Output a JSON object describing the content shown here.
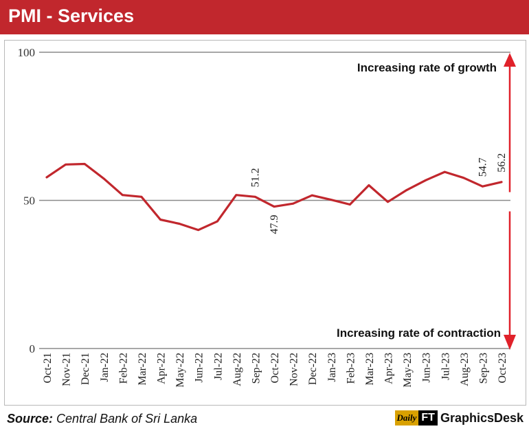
{
  "header": {
    "title": "PMI - Services"
  },
  "chart_data": {
    "type": "line",
    "title": "PMI - Services",
    "categories": [
      "Oct-21",
      "Nov-21",
      "Dec-21",
      "Jan-22",
      "Feb-22",
      "Mar-22",
      "Apr-22",
      "May-22",
      "Jun-22",
      "Jul-22",
      "Aug-22",
      "Sep-22",
      "Oct-22",
      "Nov-22",
      "Dec-22",
      "Jan-23",
      "Feb-23",
      "Mar-23",
      "Apr-23",
      "May-23",
      "Jun-23",
      "Jul-23",
      "Aug-23",
      "Sep-23",
      "Oct-23"
    ],
    "series": [
      {
        "values": [
          57.8,
          62.1,
          62.3,
          57.4,
          51.8,
          51.2,
          43.5,
          42.1,
          40.0,
          42.9,
          51.8,
          51.2,
          47.9,
          48.9,
          51.7,
          50.2,
          48.6,
          55.1,
          49.5,
          53.5,
          56.8,
          59.6,
          57.6,
          54.7,
          56.2
        ]
      }
    ],
    "data_labels": [
      {
        "category": "Sep-22",
        "text": "51.2"
      },
      {
        "category": "Oct-22",
        "text": "47.9"
      },
      {
        "category": "Sep-23",
        "text": "54.7"
      },
      {
        "category": "Oct-23",
        "text": "56.2"
      }
    ],
    "y_ticks": [
      "0",
      "50",
      "100"
    ],
    "ylim": [
      0,
      100
    ],
    "reference_line": 50,
    "annotations": {
      "growth": "Increasing rate of growth",
      "contraction": "Increasing rate of contraction"
    },
    "line_color": "#c1272d",
    "grid": true
  },
  "footer": {
    "source_label": "Source:",
    "source_text": "Central Bank of Sri Lanka",
    "brand_daily": "Daily",
    "brand_ft": "FT",
    "brand_name": "GraphicsDesk"
  },
  "colors": {
    "title_bar": "#c1272d",
    "line": "#c1272d",
    "arrow": "#e0212a",
    "grid": "#8a8a8a"
  }
}
